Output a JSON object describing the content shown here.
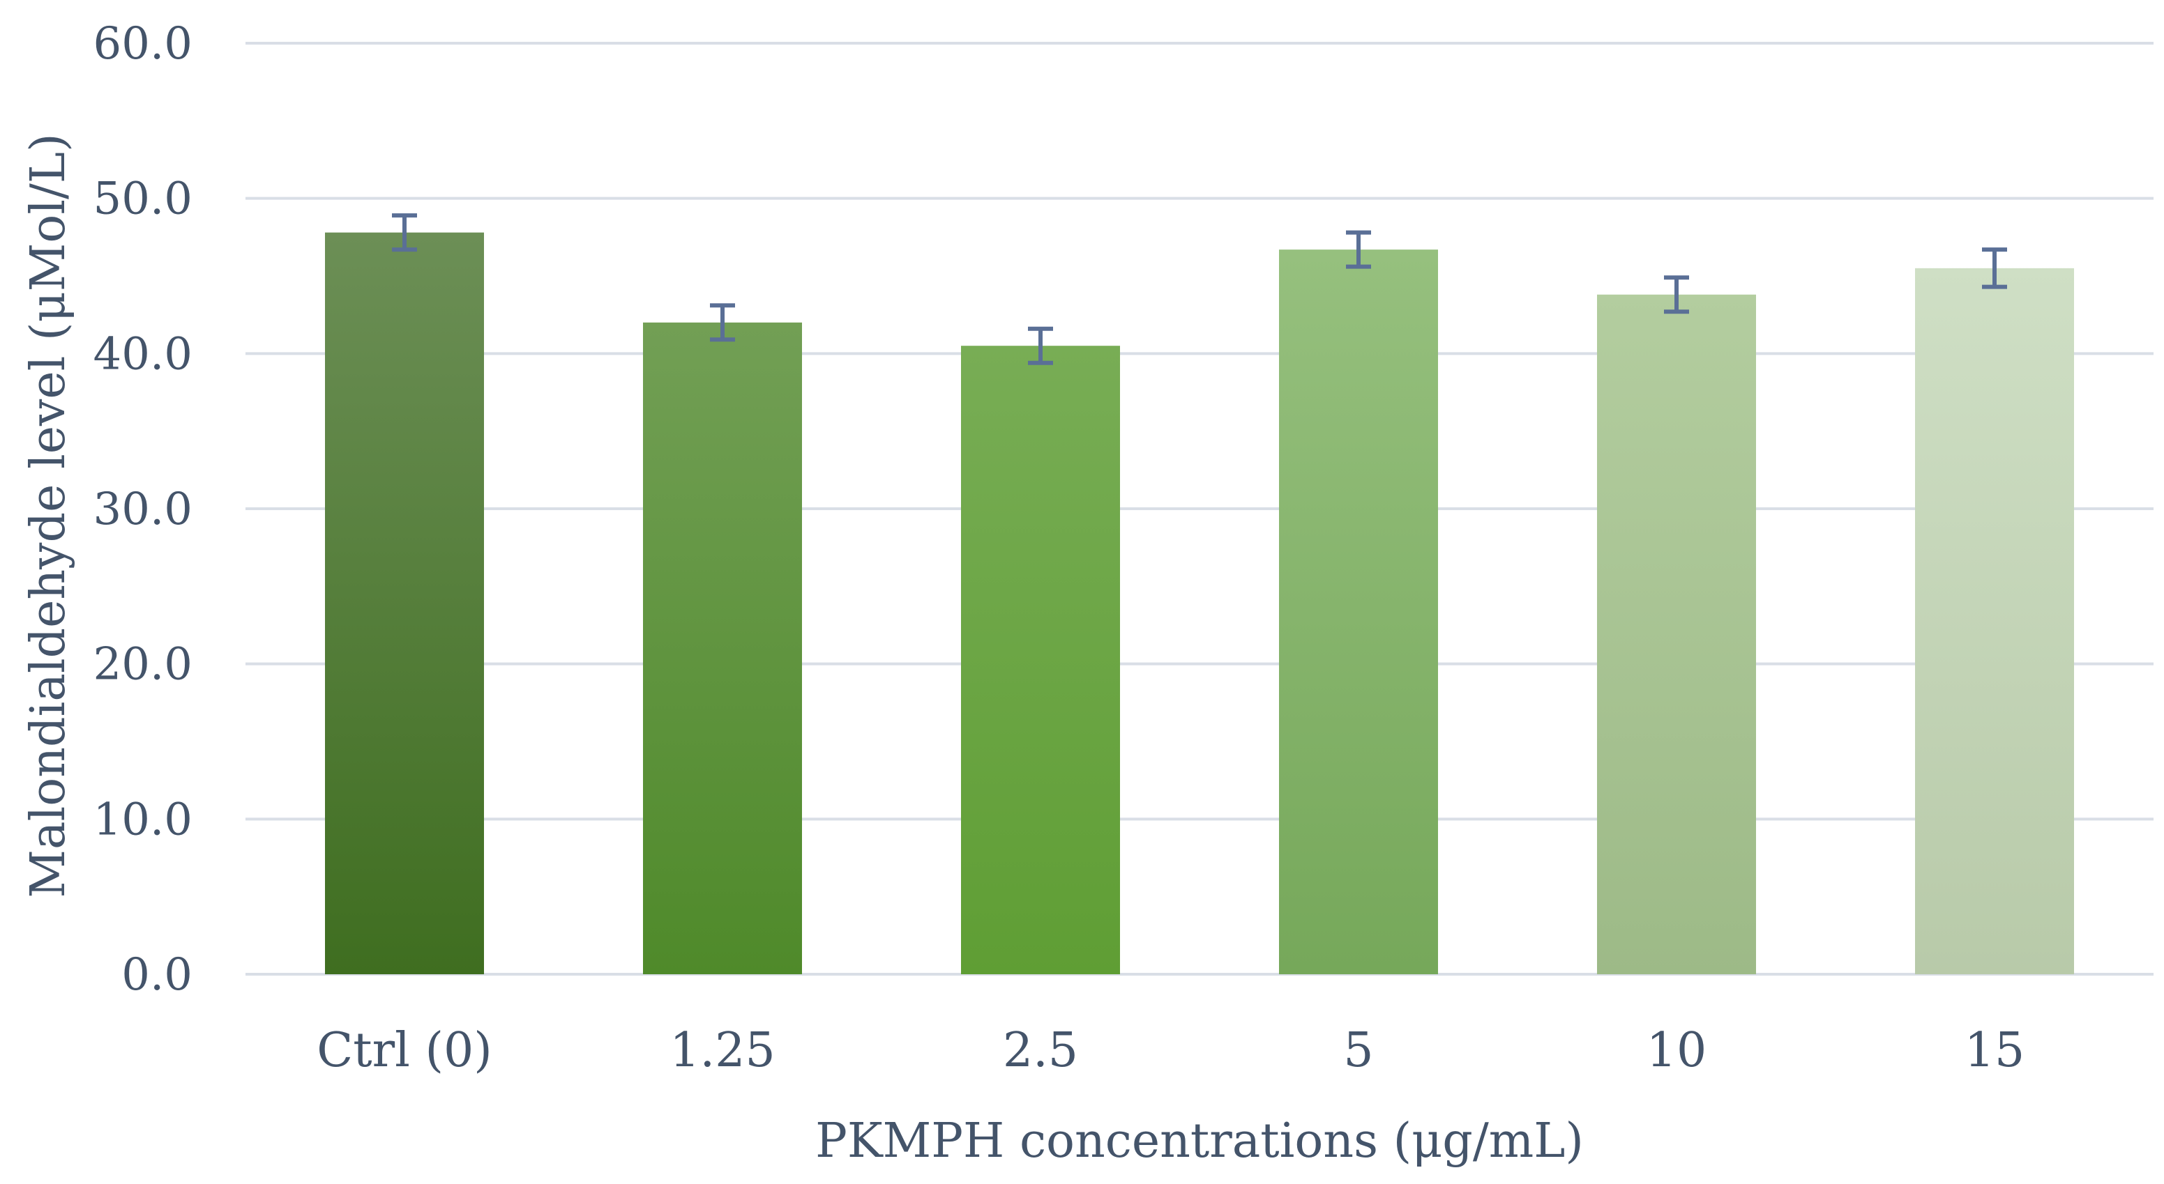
{
  "chart_data": {
    "type": "bar",
    "title": "",
    "xlabel": "PKMPH concentrations  (μg/mL)",
    "ylabel": "Malondialdehyde  level (μMol/L)",
    "categories": [
      "Ctrl (0)",
      "1.25",
      "2.5",
      "5",
      "10",
      "15"
    ],
    "values": [
      47.8,
      42.0,
      40.5,
      46.7,
      43.8,
      45.5
    ],
    "errors": [
      1.1,
      1.1,
      1.1,
      1.1,
      1.1,
      1.2
    ],
    "ylim": [
      0,
      60
    ],
    "yticks": [
      "0.0",
      "10.0",
      "20.0",
      "30.0",
      "40.0",
      "50.0",
      "60.0"
    ],
    "grid": true,
    "legend": "none",
    "colors": {
      "bars_top": [
        "#6c8f56",
        "#729f55",
        "#78ad55",
        "#96c07e",
        "#b3cd9f",
        "#cfdfc5"
      ],
      "bars_bottom": [
        "#3f6e20",
        "#4f8a2a",
        "#5f9e34",
        "#76a85a",
        "#9dba87",
        "#b8caa9"
      ],
      "gridline": "#d9dee6",
      "axis_text": "#44546a",
      "error_bar": "#5a6f96"
    }
  }
}
